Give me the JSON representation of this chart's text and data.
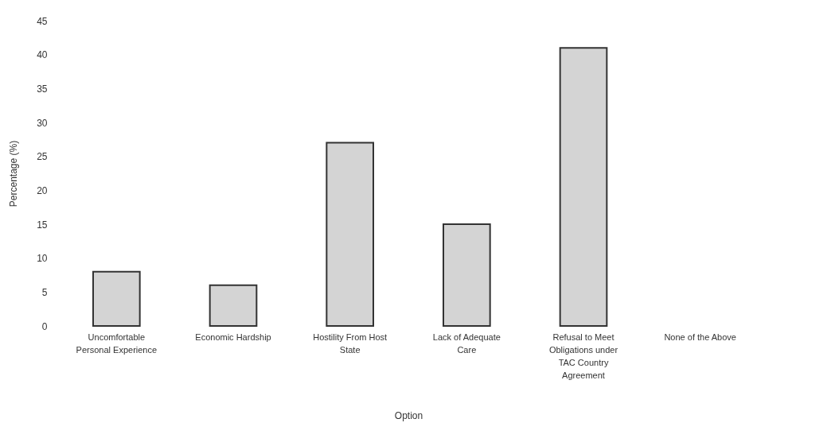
{
  "chart_data": {
    "type": "bar",
    "xlabel": "Option",
    "ylabel": "Percentage (%)",
    "categories": [
      "Uncomfortable Personal Experience",
      "Economic Hardship",
      "Hostility From Host State",
      "Lack of Adequate Care",
      "Refusal to Meet Obligations under TAC Country Agreement",
      "None of the Above"
    ],
    "values": [
      8,
      6,
      27,
      15,
      41,
      0
    ],
    "color": "#d4d4d4",
    "ylim": [
      0,
      45
    ],
    "yticks": [
      0,
      5,
      10,
      15,
      20,
      25,
      30,
      35,
      40,
      45
    ],
    "grid": false
  }
}
